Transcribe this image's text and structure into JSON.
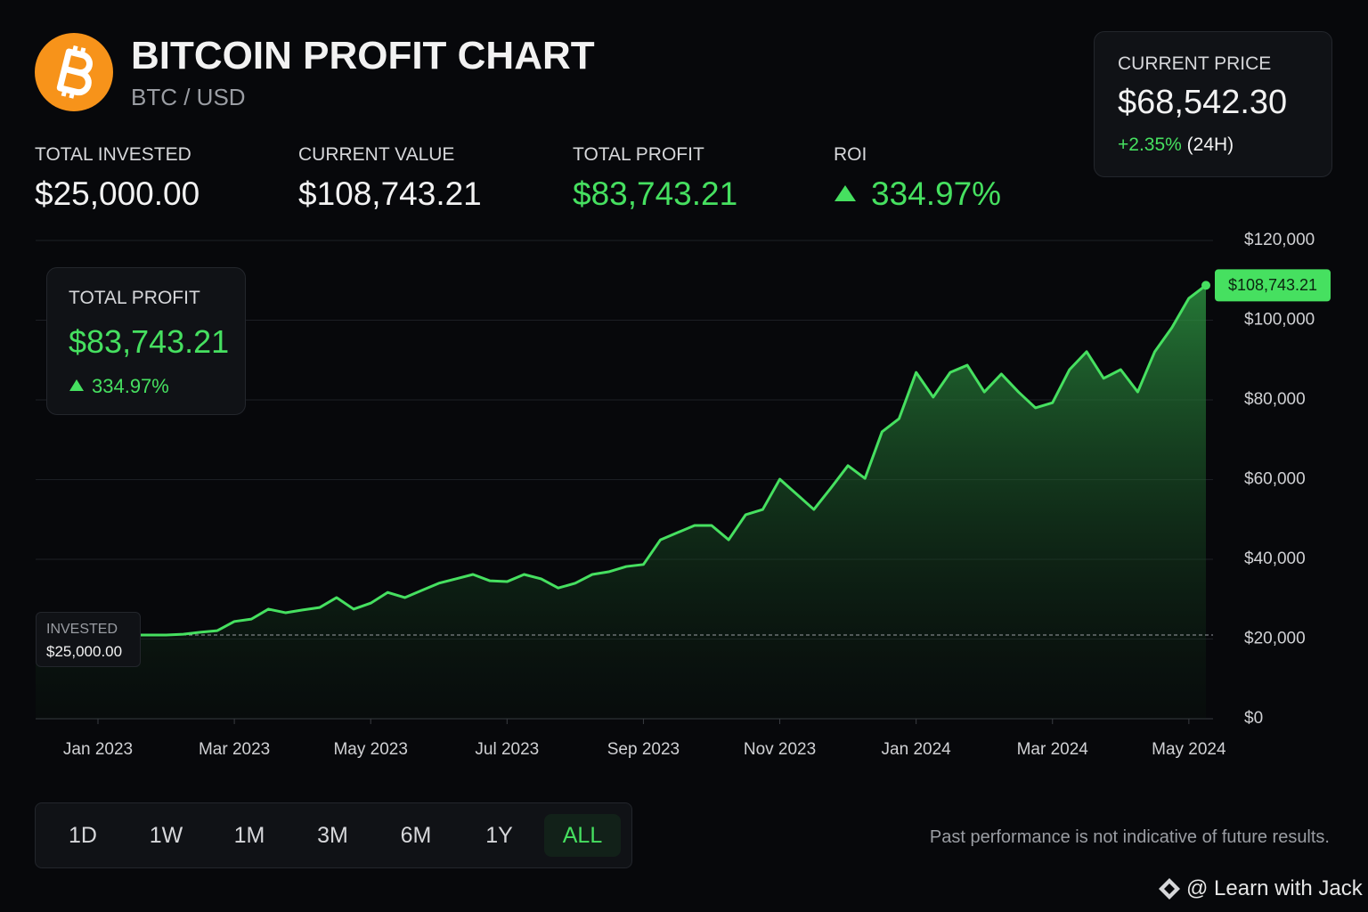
{
  "header": {
    "title": "BITCOIN PROFIT CHART",
    "subtitle": "BTC / USD"
  },
  "current_price": {
    "label": "CURRENT PRICE",
    "value": "$68,542.30",
    "change": "+2.35%",
    "period": "(24H)"
  },
  "stats": [
    {
      "label": "TOTAL INVESTED",
      "value": "$25,000.00"
    },
    {
      "label": "CURRENT VALUE",
      "value": "$108,743.21"
    },
    {
      "label": "TOTAL PROFIT",
      "value": "$83,743.21"
    },
    {
      "label": "ROI",
      "value": "334.97%"
    }
  ],
  "profit_card": {
    "label": "TOTAL PROFIT",
    "value": "$83,743.21",
    "change": "334.97%"
  },
  "invested_card": {
    "label": "INVESTED",
    "value": "$25,000.00"
  },
  "chart_data": {
    "type": "line",
    "categories": [
      "Jan 2023",
      null,
      null,
      null,
      null,
      null,
      null,
      null,
      "Mar 2023",
      null,
      null,
      null,
      null,
      null,
      null,
      null,
      "May 2023",
      null,
      null,
      null,
      null,
      null,
      null,
      null,
      "Jul 2023",
      null,
      null,
      null,
      null,
      null,
      null,
      null,
      "Sep 2023",
      null,
      null,
      null,
      null,
      null,
      null,
      null,
      "Nov 2023",
      null,
      null,
      null,
      null,
      null,
      null,
      null,
      "Jan 2024",
      null,
      null,
      null,
      null,
      null,
      null,
      null,
      "Mar 2024",
      null,
      null,
      null,
      null,
      null,
      null,
      null,
      "May 2024",
      null
    ],
    "values": [
      null,
      null,
      21000,
      21000,
      21000,
      21200,
      21700,
      22100,
      24400,
      25000,
      27500,
      26600,
      27300,
      27900,
      30400,
      27500,
      29000,
      31700,
      30400,
      32200,
      34000,
      35100,
      36200,
      34600,
      34400,
      36200,
      35100,
      32800,
      34000,
      36200,
      36900,
      38200,
      38700,
      44900,
      46700,
      48500,
      48500,
      44900,
      51200,
      52500,
      60100,
      56300,
      52500,
      57900,
      63500,
      60300,
      72000,
      75300,
      86900,
      80700,
      86900,
      88700,
      82000,
      86500,
      82000,
      78000,
      79300,
      87600,
      92100,
      85400,
      87600,
      82000,
      92100,
      98100,
      105500,
      108743.21
    ],
    "value_labels": [
      null,
      null,
      null,
      null,
      null,
      null,
      null,
      null,
      null,
      null,
      null,
      null,
      null,
      null,
      null,
      null,
      null,
      null,
      null,
      null,
      null,
      null,
      null,
      null,
      null,
      null,
      null,
      null,
      null,
      null,
      null,
      null,
      null,
      null,
      null,
      null,
      null,
      null,
      null,
      null,
      null,
      null,
      null,
      null,
      null,
      null,
      null,
      null,
      null,
      null,
      null,
      null,
      null,
      null,
      null,
      null,
      null,
      null,
      null,
      null,
      null,
      null,
      null,
      null,
      null,
      "$108,743.21"
    ],
    "color": "#46e060",
    "ylim": [
      0,
      120000
    ],
    "yticks": [
      {
        "value": 0,
        "label": "$0"
      },
      {
        "value": 20000,
        "label": "$20,000"
      },
      {
        "value": 40000,
        "label": "$40,000"
      },
      {
        "value": 60000,
        "label": "$60,000"
      },
      {
        "value": 80000,
        "label": "$80,000"
      },
      {
        "value": 100000,
        "label": "$100,000"
      },
      {
        "value": 120000,
        "label": "$120,000"
      }
    ],
    "grid": true
  },
  "range_selector": {
    "options": [
      "1D",
      "1W",
      "1M",
      "3M",
      "6M",
      "1Y",
      "ALL"
    ],
    "active": "ALL"
  },
  "disclaimer": "Past performance is not indicative of future results.",
  "watermark": "@ Learn with Jack"
}
